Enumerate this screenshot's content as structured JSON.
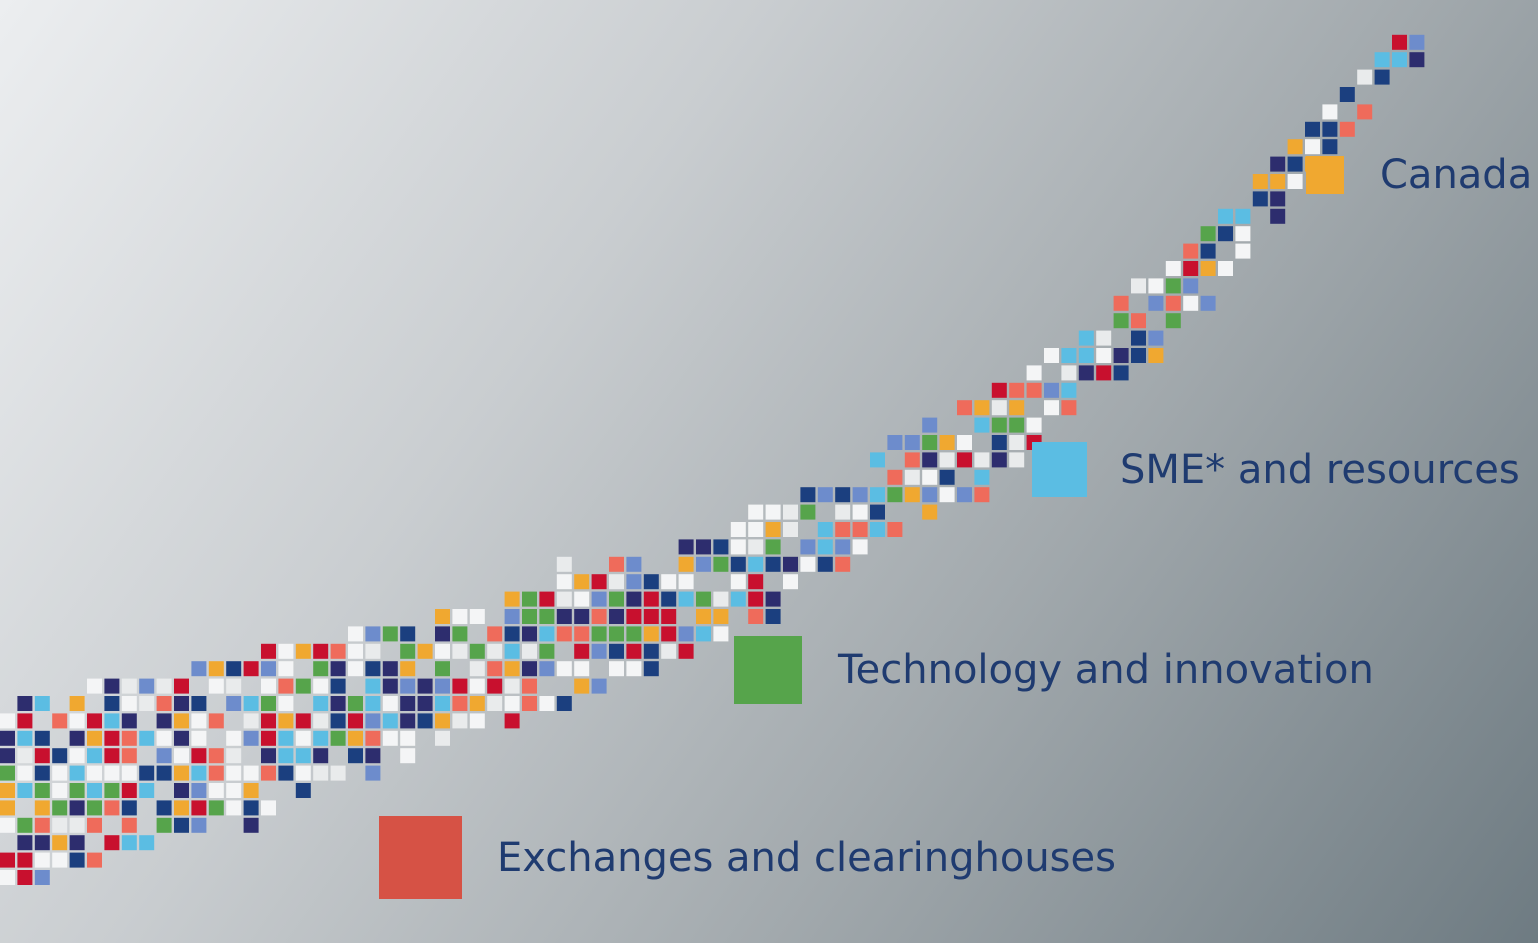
{
  "items": [
    {
      "label": "Canada",
      "color": "#f0a830"
    },
    {
      "label": "SME* and resources",
      "color": "#5bbde3"
    },
    {
      "label": "Technology and innovation",
      "color": "#56a44b"
    },
    {
      "label": "Exchanges and clearinghouses",
      "color": "#d65245"
    }
  ]
}
